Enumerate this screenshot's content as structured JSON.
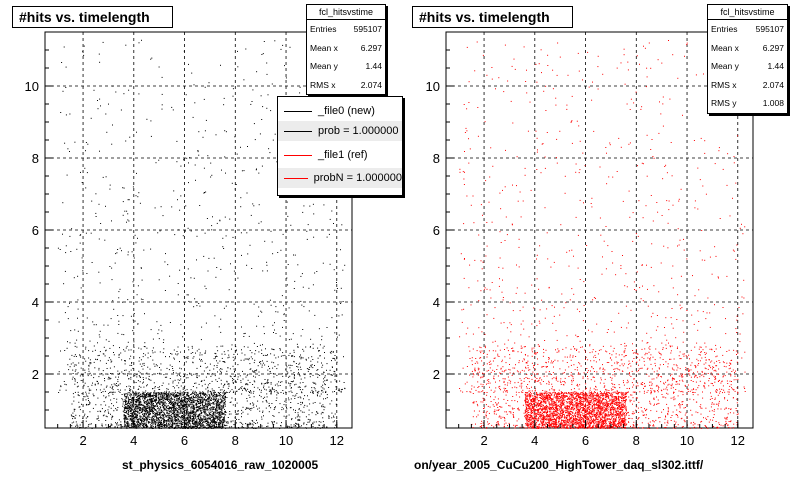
{
  "left": {
    "title": "#hits vs. timelength",
    "stats": {
      "name": "fcl_hitsvstime",
      "rows": [
        {
          "label": "Entries",
          "value": "595107"
        },
        {
          "label": "Mean x",
          "value": "6.297"
        },
        {
          "label": "Mean y",
          "value": "1.44"
        },
        {
          "label": "RMS x",
          "value": "2.074"
        }
      ]
    },
    "legend": [
      {
        "label": "_file0 (new)",
        "color": "#000000"
      },
      {
        "label": "prob = 1.000000",
        "color": "#000000"
      },
      {
        "label": "_file1 (ref)",
        "color": "#ff0000"
      },
      {
        "label": "probN = 1.000000",
        "color": "#ff0000"
      }
    ],
    "x_caption": "st_physics_6054016_raw_1020005"
  },
  "right": {
    "title": "#hits vs. timelength",
    "stats": {
      "name": "fcl_hitsvstime",
      "rows": [
        {
          "label": "Entries",
          "value": "595107"
        },
        {
          "label": "Mean x",
          "value": "6.297"
        },
        {
          "label": "Mean y",
          "value": "1.44"
        },
        {
          "label": "RMS x",
          "value": "2.074"
        },
        {
          "label": "RMS y",
          "value": "1.008"
        }
      ]
    },
    "x_caption": "on/year_2005_CuCu200_HighTower_daq_sl302.ittf/"
  },
  "chart_data": [
    {
      "type": "scatter",
      "title": "#hits vs. timelength",
      "xlabel": "st_physics_6054016_raw_1020005",
      "ylabel": "",
      "xlim": [
        0.5,
        12.6
      ],
      "ylim": [
        0.5,
        11.5
      ],
      "x_ticks": [
        2,
        4,
        6,
        8,
        10,
        12
      ],
      "y_ticks": [
        2,
        4,
        6,
        8,
        10
      ],
      "grid": true,
      "marker_color": "#000000",
      "entries": 595107,
      "mean_x": 6.297,
      "mean_y": 1.44,
      "rms_x": 2.074,
      "dense_region": {
        "x": [
          3.6,
          7.6
        ],
        "y": [
          0.5,
          1.5
        ]
      }
    },
    {
      "type": "scatter",
      "title": "#hits vs. timelength",
      "xlabel": "on/year_2005_CuCu200_HighTower_daq_sl302.ittf/",
      "ylabel": "",
      "xlim": [
        0.5,
        12.6
      ],
      "ylim": [
        0.5,
        11.5
      ],
      "x_ticks": [
        2,
        4,
        6,
        8,
        10,
        12
      ],
      "y_ticks": [
        2,
        4,
        6,
        8,
        10
      ],
      "grid": true,
      "marker_color": "#ff0000",
      "entries": 595107,
      "mean_x": 6.297,
      "mean_y": 1.44,
      "rms_x": 2.074,
      "rms_y": 1.008,
      "dense_region": {
        "x": [
          3.6,
          7.6
        ],
        "y": [
          0.5,
          1.5
        ]
      }
    }
  ]
}
